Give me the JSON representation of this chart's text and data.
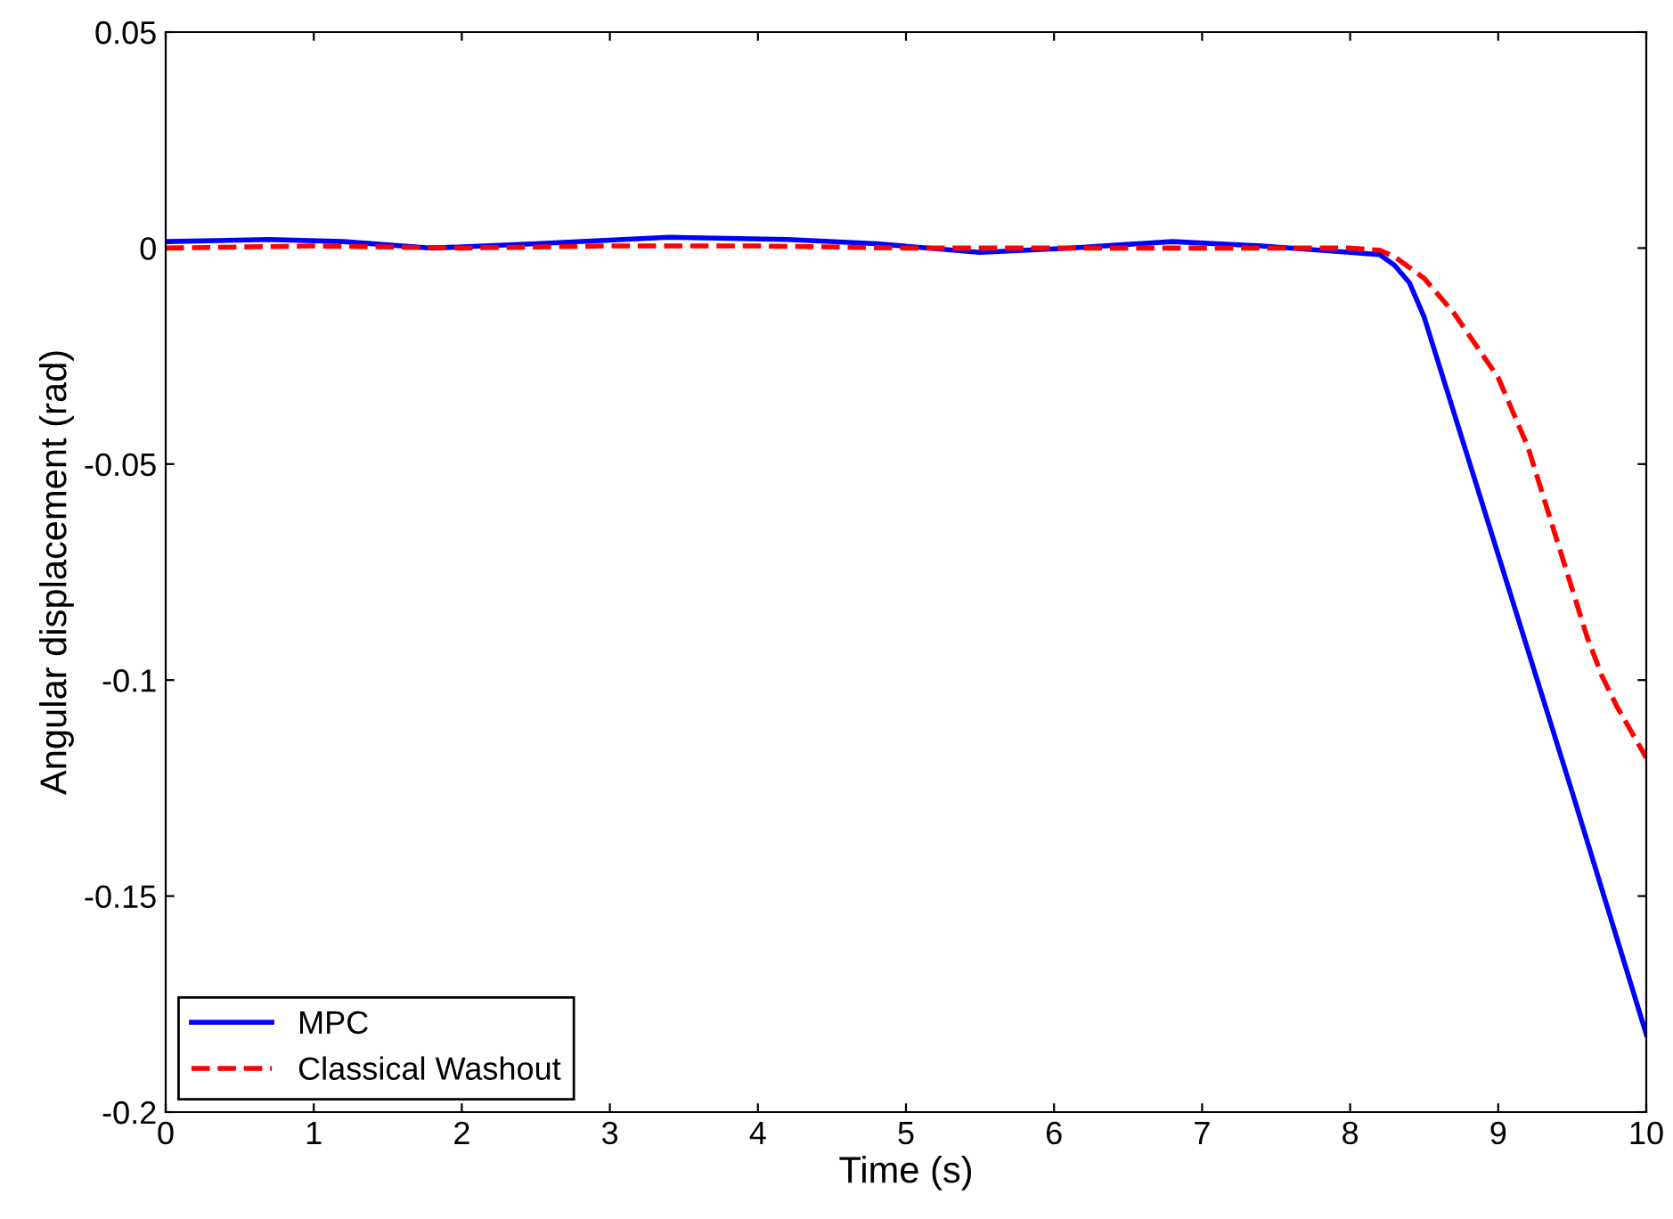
{
  "chart_data": {
    "type": "line",
    "xlabel": "Time (s)",
    "ylabel": "Angular displacement (rad)",
    "xlim": [
      0,
      10
    ],
    "ylim": [
      -0.2,
      0.05
    ],
    "xticks": [
      0,
      1,
      2,
      3,
      4,
      5,
      6,
      7,
      8,
      9,
      10
    ],
    "yticks": [
      {
        "value": -0.2,
        "label": "-0.2"
      },
      {
        "value": -0.15,
        "label": "-0.15"
      },
      {
        "value": -0.1,
        "label": "-0.1"
      },
      {
        "value": -0.05,
        "label": "-0.05"
      },
      {
        "value": 0,
        "label": "0"
      },
      {
        "value": 0.05,
        "label": "0.05"
      }
    ],
    "grid": false,
    "legend": "bottom left",
    "series": [
      {
        "name": "MPC",
        "color": "#0000ff",
        "line_style": "solid",
        "x": [
          0,
          0.7,
          1.2,
          1.8,
          2.5,
          3.4,
          4.2,
          4.8,
          5.5,
          6.1,
          6.8,
          7.4,
          8.0,
          8.2,
          8.3,
          8.4,
          8.5,
          9.0,
          9.5,
          10
        ],
        "values": [
          0.0015,
          0.002,
          0.0015,
          0.0,
          0.001,
          0.0025,
          0.002,
          0.001,
          -0.001,
          0.0,
          0.0015,
          0.0005,
          -0.001,
          -0.0015,
          -0.004,
          -0.008,
          -0.016,
          -0.071,
          -0.126,
          -0.182
        ]
      },
      {
        "name": "Classical Washout",
        "color": "#ff0000",
        "line_style": "dashed",
        "x": [
          0,
          1,
          2,
          3,
          4,
          5,
          6,
          7,
          8.0,
          8.2,
          8.3,
          8.5,
          8.7,
          9.0,
          9.2,
          9.4,
          9.5,
          9.6,
          9.7,
          9.8,
          9.9,
          10
        ],
        "values": [
          0.0,
          0.0005,
          0.0,
          0.0005,
          0.0005,
          0.0,
          0.0,
          0.0,
          0.0,
          -0.0005,
          -0.002,
          -0.007,
          -0.015,
          -0.03,
          -0.046,
          -0.068,
          -0.079,
          -0.09,
          -0.099,
          -0.106,
          -0.112,
          -0.118
        ]
      }
    ]
  }
}
